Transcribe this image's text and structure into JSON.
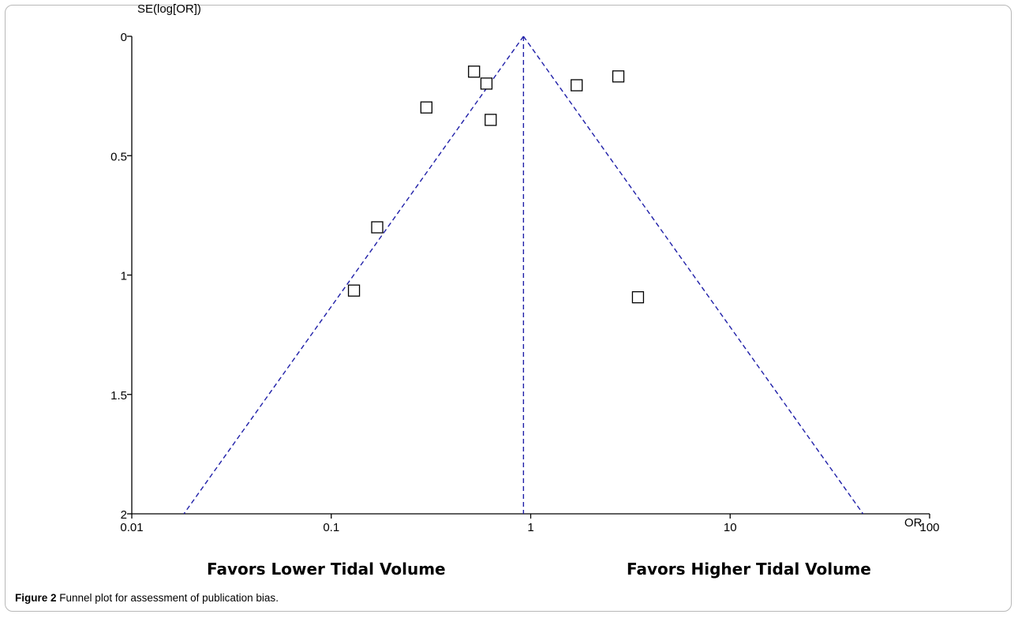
{
  "chart_data": {
    "type": "scatter",
    "title": "",
    "xlabel": "OR",
    "ylabel": "SE(log[OR])",
    "x_scale": "log",
    "xlim": [
      0.01,
      100
    ],
    "ylim": [
      0,
      2
    ],
    "y_inverted": true,
    "x_ticks": [
      0.01,
      0.1,
      1,
      10,
      100
    ],
    "x_tick_labels": [
      "0.01",
      "0.1",
      "1",
      "10",
      "100"
    ],
    "y_ticks": [
      0,
      0.5,
      1,
      1.5,
      2
    ],
    "y_tick_labels": [
      "0",
      "0.5",
      "1",
      "1.5",
      "2"
    ],
    "grid": false,
    "marker": "open-square",
    "points": [
      {
        "or": 0.52,
        "se": 0.148
      },
      {
        "or": 0.6,
        "se": 0.198
      },
      {
        "or": 0.3,
        "se": 0.298
      },
      {
        "or": 0.63,
        "se": 0.35
      },
      {
        "or": 0.17,
        "se": 0.8
      },
      {
        "or": 0.13,
        "se": 1.065
      },
      {
        "or": 1.7,
        "se": 0.205
      },
      {
        "or": 2.75,
        "se": 0.168
      },
      {
        "or": 3.45,
        "se": 1.093
      }
    ],
    "pooled_or": 0.92,
    "funnel_line_color": "#1f1fa8"
  },
  "annotations": {
    "left_label": "Favors Lower Tidal Volume",
    "right_label": "Favors Higher Tidal Volume"
  },
  "caption": {
    "label": "Figure 2",
    "text": "Funnel plot for assessment of publication bias"
  }
}
